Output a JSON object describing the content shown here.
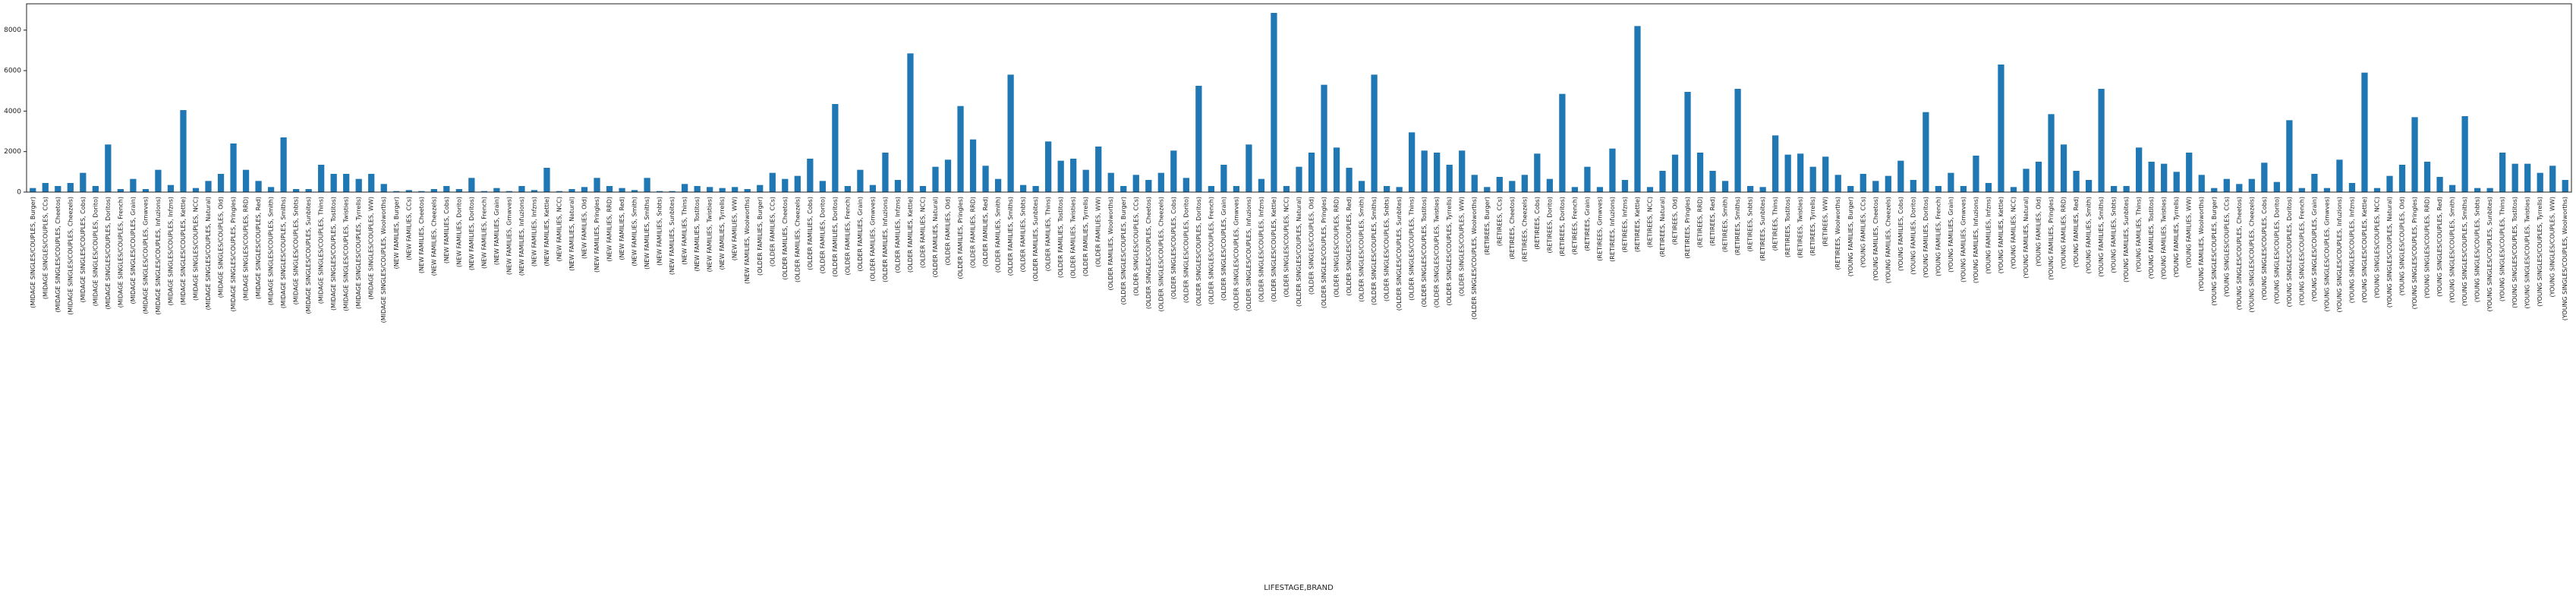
{
  "chart_data": {
    "type": "bar",
    "xlabel": "LIFESTAGE,BRAND",
    "color": "#1f77b4",
    "ylim": [
      0,
      9300
    ],
    "yticks": [
      0,
      2000,
      4000,
      6000,
      8000
    ],
    "grid": false,
    "categories": [
      "(MIDAGE SINGLES/COUPLES, Burger)",
      "(MIDAGE SINGLES/COUPLES, CCs)",
      "(MIDAGE SINGLES/COUPLES, Cheetos)",
      "(MIDAGE SINGLES/COUPLES, Cheezels)",
      "(MIDAGE SINGLES/COUPLES, Cobs)",
      "(MIDAGE SINGLES/COUPLES, Dorito)",
      "(MIDAGE SINGLES/COUPLES, Doritos)",
      "(MIDAGE SINGLES/COUPLES, French)",
      "(MIDAGE SINGLES/COUPLES, Grain)",
      "(MIDAGE SINGLES/COUPLES, Grnwves)",
      "(MIDAGE SINGLES/COUPLES, Infuzions)",
      "(MIDAGE SINGLES/COUPLES, Infzns)",
      "(MIDAGE SINGLES/COUPLES, Kettle)",
      "(MIDAGE SINGLES/COUPLES, NCC)",
      "(MIDAGE SINGLES/COUPLES, Natural)",
      "(MIDAGE SINGLES/COUPLES, Old)",
      "(MIDAGE SINGLES/COUPLES, Pringles)",
      "(MIDAGE SINGLES/COUPLES, RRD)",
      "(MIDAGE SINGLES/COUPLES, Red)",
      "(MIDAGE SINGLES/COUPLES, Smith)",
      "(MIDAGE SINGLES/COUPLES, Smiths)",
      "(MIDAGE SINGLES/COUPLES, Snbts)",
      "(MIDAGE SINGLES/COUPLES, Sunbites)",
      "(MIDAGE SINGLES/COUPLES, Thins)",
      "(MIDAGE SINGLES/COUPLES, Tostitos)",
      "(MIDAGE SINGLES/COUPLES, Twisties)",
      "(MIDAGE SINGLES/COUPLES, Tyrrells)",
      "(MIDAGE SINGLES/COUPLES, WW)",
      "(MIDAGE SINGLES/COUPLES, Woolworths)",
      "(NEW FAMILIES, Burger)",
      "(NEW FAMILIES, CCs)",
      "(NEW FAMILIES, Cheetos)",
      "(NEW FAMILIES, Cheezels)",
      "(NEW FAMILIES, Cobs)",
      "(NEW FAMILIES, Dorito)",
      "(NEW FAMILIES, Doritos)",
      "(NEW FAMILIES, French)",
      "(NEW FAMILIES, Grain)",
      "(NEW FAMILIES, Grnwves)",
      "(NEW FAMILIES, Infuzions)",
      "(NEW FAMILIES, Infzns)",
      "(NEW FAMILIES, Kettle)",
      "(NEW FAMILIES, NCC)",
      "(NEW FAMILIES, Natural)",
      "(NEW FAMILIES, Old)",
      "(NEW FAMILIES, Pringles)",
      "(NEW FAMILIES, RRD)",
      "(NEW FAMILIES, Red)",
      "(NEW FAMILIES, Smith)",
      "(NEW FAMILIES, Smiths)",
      "(NEW FAMILIES, Snbts)",
      "(NEW FAMILIES, Sunbites)",
      "(NEW FAMILIES, Thins)",
      "(NEW FAMILIES, Tostitos)",
      "(NEW FAMILIES, Twisties)",
      "(NEW FAMILIES, Tyrrells)",
      "(NEW FAMILIES, WW)",
      "(NEW FAMILIES, Woolworths)",
      "(OLDER FAMILIES, Burger)",
      "(OLDER FAMILIES, CCs)",
      "(OLDER FAMILIES, Cheetos)",
      "(OLDER FAMILIES, Cheezels)",
      "(OLDER FAMILIES, Cobs)",
      "(OLDER FAMILIES, Dorito)",
      "(OLDER FAMILIES, Doritos)",
      "(OLDER FAMILIES, French)",
      "(OLDER FAMILIES, Grain)",
      "(OLDER FAMILIES, Grnwves)",
      "(OLDER FAMILIES, Infuzions)",
      "(OLDER FAMILIES, Infzns)",
      "(OLDER FAMILIES, Kettle)",
      "(OLDER FAMILIES, NCC)",
      "(OLDER FAMILIES, Natural)",
      "(OLDER FAMILIES, Old)",
      "(OLDER FAMILIES, Pringles)",
      "(OLDER FAMILIES, RRD)",
      "(OLDER FAMILIES, Red)",
      "(OLDER FAMILIES, Smith)",
      "(OLDER FAMILIES, Smiths)",
      "(OLDER FAMILIES, Snbts)",
      "(OLDER FAMILIES, Sunbites)",
      "(OLDER FAMILIES, Thins)",
      "(OLDER FAMILIES, Tostitos)",
      "(OLDER FAMILIES, Twisties)",
      "(OLDER FAMILIES, Tyrrells)",
      "(OLDER FAMILIES, WW)",
      "(OLDER FAMILIES, Woolworths)",
      "(OLDER SINGLES/COUPLES, Burger)",
      "(OLDER SINGLES/COUPLES, CCs)",
      "(OLDER SINGLES/COUPLES, Cheetos)",
      "(OLDER SINGLES/COUPLES, Cheezels)",
      "(OLDER SINGLES/COUPLES, Cobs)",
      "(OLDER SINGLES/COUPLES, Dorito)",
      "(OLDER SINGLES/COUPLES, Doritos)",
      "(OLDER SINGLES/COUPLES, French)",
      "(OLDER SINGLES/COUPLES, Grain)",
      "(OLDER SINGLES/COUPLES, Grnwves)",
      "(OLDER SINGLES/COUPLES, Infuzions)",
      "(OLDER SINGLES/COUPLES, Infzns)",
      "(OLDER SINGLES/COUPLES, Kettle)",
      "(OLDER SINGLES/COUPLES, NCC)",
      "(OLDER SINGLES/COUPLES, Natural)",
      "(OLDER SINGLES/COUPLES, Old)",
      "(OLDER SINGLES/COUPLES, Pringles)",
      "(OLDER SINGLES/COUPLES, RRD)",
      "(OLDER SINGLES/COUPLES, Red)",
      "(OLDER SINGLES/COUPLES, Smith)",
      "(OLDER SINGLES/COUPLES, Smiths)",
      "(OLDER SINGLES/COUPLES, Snbts)",
      "(OLDER SINGLES/COUPLES, Sunbites)",
      "(OLDER SINGLES/COUPLES, Thins)",
      "(OLDER SINGLES/COUPLES, Tostitos)",
      "(OLDER SINGLES/COUPLES, Twisties)",
      "(OLDER SINGLES/COUPLES, Tyrrells)",
      "(OLDER SINGLES/COUPLES, WW)",
      "(OLDER SINGLES/COUPLES, Woolworths)",
      "(RETIREES, Burger)",
      "(RETIREES, CCs)",
      "(RETIREES, Cheetos)",
      "(RETIREES, Cheezels)",
      "(RETIREES, Cobs)",
      "(RETIREES, Dorito)",
      "(RETIREES, Doritos)",
      "(RETIREES, French)",
      "(RETIREES, Grain)",
      "(RETIREES, Grnwves)",
      "(RETIREES, Infuzions)",
      "(RETIREES, Infzns)",
      "(RETIREES, Kettle)",
      "(RETIREES, NCC)",
      "(RETIREES, Natural)",
      "(RETIREES, Old)",
      "(RETIREES, Pringles)",
      "(RETIREES, RRD)",
      "(RETIREES, Red)",
      "(RETIREES, Smith)",
      "(RETIREES, Smiths)",
      "(RETIREES, Snbts)",
      "(RETIREES, Sunbites)",
      "(RETIREES, Thins)",
      "(RETIREES, Tostitos)",
      "(RETIREES, Twisties)",
      "(RETIREES, Tyrrells)",
      "(RETIREES, WW)",
      "(RETIREES, Woolworths)",
      "(YOUNG FAMILIES, Burger)",
      "(YOUNG FAMILIES, CCs)",
      "(YOUNG FAMILIES, Cheetos)",
      "(YOUNG FAMILIES, Cheezels)",
      "(YOUNG FAMILIES, Cobs)",
      "(YOUNG FAMILIES, Dorito)",
      "(YOUNG FAMILIES, Doritos)",
      "(YOUNG FAMILIES, French)",
      "(YOUNG FAMILIES, Grain)",
      "(YOUNG FAMILIES, Grnwves)",
      "(YOUNG FAMILIES, Infuzions)",
      "(YOUNG FAMILIES, Infzns)",
      "(YOUNG FAMILIES, Kettle)",
      "(YOUNG FAMILIES, NCC)",
      "(YOUNG FAMILIES, Natural)",
      "(YOUNG FAMILIES, Old)",
      "(YOUNG FAMILIES, Pringles)",
      "(YOUNG FAMILIES, RRD)",
      "(YOUNG FAMILIES, Red)",
      "(YOUNG FAMILIES, Smith)",
      "(YOUNG FAMILIES, Smiths)",
      "(YOUNG FAMILIES, Snbts)",
      "(YOUNG FAMILIES, Sunbites)",
      "(YOUNG FAMILIES, Thins)",
      "(YOUNG FAMILIES, Tostitos)",
      "(YOUNG FAMILIES, Twisties)",
      "(YOUNG FAMILIES, Tyrrells)",
      "(YOUNG FAMILIES, WW)",
      "(YOUNG FAMILIES, Woolworths)",
      "(YOUNG SINGLES/COUPLES, Burger)",
      "(YOUNG SINGLES/COUPLES, CCs)",
      "(YOUNG SINGLES/COUPLES, Cheetos)",
      "(YOUNG SINGLES/COUPLES, Cheezels)",
      "(YOUNG SINGLES/COUPLES, Cobs)",
      "(YOUNG SINGLES/COUPLES, Dorito)",
      "(YOUNG SINGLES/COUPLES, Doritos)",
      "(YOUNG SINGLES/COUPLES, French)",
      "(YOUNG SINGLES/COUPLES, Grain)",
      "(YOUNG SINGLES/COUPLES, Grnwves)",
      "(YOUNG SINGLES/COUPLES, Infuzions)",
      "(YOUNG SINGLES/COUPLES, Infzns)",
      "(YOUNG SINGLES/COUPLES, Kettle)",
      "(YOUNG SINGLES/COUPLES, NCC)",
      "(YOUNG SINGLES/COUPLES, Natural)",
      "(YOUNG SINGLES/COUPLES, Old)",
      "(YOUNG SINGLES/COUPLES, Pringles)",
      "(YOUNG SINGLES/COUPLES, RRD)",
      "(YOUNG SINGLES/COUPLES, Red)",
      "(YOUNG SINGLES/COUPLES, Smith)",
      "(YOUNG SINGLES/COUPLES, Smiths)",
      "(YOUNG SINGLES/COUPLES, Snbts)",
      "(YOUNG SINGLES/COUPLES, Sunbites)",
      "(YOUNG SINGLES/COUPLES, Thins)",
      "(YOUNG SINGLES/COUPLES, Tostitos)",
      "(YOUNG SINGLES/COUPLES, Twisties)",
      "(YOUNG SINGLES/COUPLES, Tyrrells)",
      "(YOUNG SINGLES/COUPLES, WW)",
      "(YOUNG SINGLES/COUPLES, Woolworths)"
    ],
    "values": [
      200,
      450,
      300,
      450,
      950,
      300,
      2350,
      150,
      650,
      150,
      1100,
      350,
      4050,
      200,
      550,
      900,
      2400,
      1100,
      550,
      250,
      2700,
      150,
      150,
      1350,
      900,
      900,
      650,
      900,
      400,
      50,
      100,
      50,
      150,
      300,
      150,
      700,
      50,
      200,
      50,
      300,
      100,
      1200,
      50,
      150,
      250,
      700,
      300,
      200,
      100,
      700,
      50,
      50,
      400,
      300,
      250,
      200,
      250,
      150,
      350,
      950,
      650,
      800,
      1650,
      550,
      4350,
      300,
      1100,
      350,
      1950,
      600,
      6850,
      300,
      1250,
      1600,
      4250,
      2600,
      1300,
      650,
      5800,
      350,
      300,
      2500,
      1550,
      1650,
      1100,
      2250,
      950,
      300,
      850,
      600,
      950,
      2050,
      700,
      5250,
      300,
      1350,
      300,
      2350,
      650,
      8850,
      300,
      1250,
      1950,
      5300,
      2200,
      1200,
      550,
      5800,
      300,
      250,
      2950,
      2050,
      1950,
      1350,
      2050,
      850,
      250,
      750,
      550,
      850,
      1900,
      650,
      4850,
      250,
      1250,
      250,
      2150,
      600,
      8200,
      250,
      1050,
      1850,
      4950,
      1950,
      1050,
      550,
      5100,
      300,
      250,
      2800,
      1850,
      1900,
      1250,
      1750,
      850,
      300,
      900,
      550,
      800,
      1550,
      600,
      3950,
      300,
      950,
      300,
      1800,
      450,
      6300,
      250,
      1150,
      1500,
      3850,
      2350,
      1050,
      600,
      5100,
      300,
      300,
      2200,
      1500,
      1400,
      1000,
      1950,
      850,
      200,
      650,
      400,
      650,
      1450,
      500,
      3550,
      200,
      900,
      200,
      1600,
      450,
      5900,
      200,
      800,
      1350,
      3700,
      1500,
      750,
      350,
      3750,
      200,
      200,
      1950,
      1400,
      1400,
      950,
      1300,
      600
    ]
  }
}
